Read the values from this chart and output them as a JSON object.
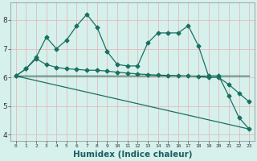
{
  "bg_color": "#d6f0ec",
  "grid_color": "#e8b0b0",
  "line_color": "#1a7060",
  "xlabel": "Humidex (Indice chaleur)",
  "xlabel_fontsize": 7.5,
  "xlim": [
    -0.5,
    23.5
  ],
  "ylim": [
    3.8,
    8.6
  ],
  "yticks": [
    4,
    5,
    6,
    7,
    8
  ],
  "xticks": [
    0,
    1,
    2,
    3,
    4,
    5,
    6,
    7,
    8,
    9,
    10,
    11,
    12,
    13,
    14,
    15,
    16,
    17,
    18,
    19,
    20,
    21,
    22,
    23
  ],
  "xtick_labels": [
    "0",
    "1",
    "2",
    "3",
    "4",
    "5",
    "6",
    "7",
    "8",
    "9",
    "10",
    "11",
    "12",
    "13",
    "14",
    "15",
    "16",
    "17",
    "18",
    "19",
    "20",
    "21",
    "22",
    "23"
  ],
  "series1_x": [
    0,
    1,
    2,
    3,
    4,
    5,
    6,
    7,
    8,
    9,
    10,
    11,
    12,
    13,
    14,
    15,
    16,
    17,
    18,
    19,
    20,
    21,
    22,
    23
  ],
  "series1_y": [
    6.05,
    6.3,
    6.7,
    7.4,
    7.0,
    7.3,
    7.8,
    8.2,
    7.75,
    6.9,
    6.45,
    6.4,
    6.4,
    7.2,
    7.55,
    7.55,
    7.55,
    7.8,
    7.1,
    6.05,
    6.05,
    5.35,
    4.6,
    4.2
  ],
  "series2_x": [
    0,
    1,
    2,
    3,
    4,
    5,
    6,
    7,
    8,
    9,
    10,
    11,
    12,
    13,
    14,
    15,
    16,
    17,
    18,
    19,
    20,
    21,
    22,
    23
  ],
  "series2_y": [
    6.05,
    6.3,
    6.65,
    6.45,
    6.35,
    6.3,
    6.28,
    6.25,
    6.25,
    6.22,
    6.18,
    6.15,
    6.12,
    6.1,
    6.08,
    6.07,
    6.06,
    6.05,
    6.03,
    6.0,
    6.0,
    5.75,
    5.45,
    5.15
  ],
  "series3_x": [
    0,
    23
  ],
  "series3_y": [
    6.05,
    4.2
  ],
  "series4_x": [
    0,
    23
  ],
  "series4_y": [
    6.05,
    6.05
  ]
}
